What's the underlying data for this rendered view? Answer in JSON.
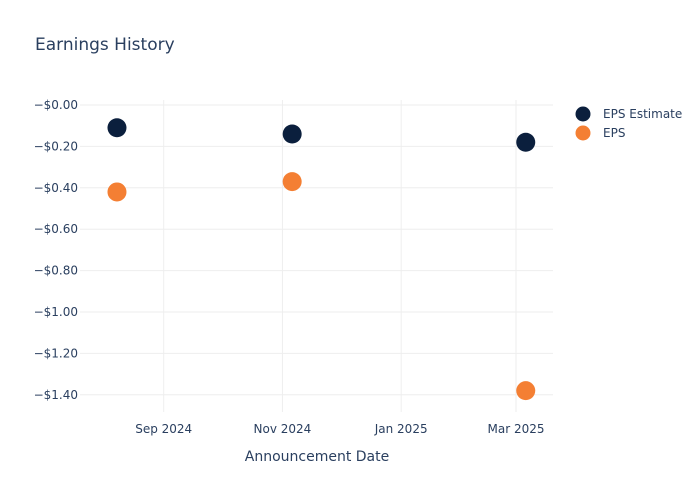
{
  "chart_data": {
    "type": "scatter",
    "title": "Earnings History",
    "xlabel": "Announcement Date",
    "ylabel": "",
    "x_ticks": [
      {
        "label": "Sep 2024",
        "date": "2024-09-01"
      },
      {
        "label": "Nov 2024",
        "date": "2024-11-01"
      },
      {
        "label": "Jan 2025",
        "date": "2025-01-01"
      },
      {
        "label": "Mar 2025",
        "date": "2025-03-01"
      }
    ],
    "y_ticks": [
      {
        "label": "−$0.00",
        "value": 0
      },
      {
        "label": "−$0.20",
        "value": -0.2
      },
      {
        "label": "−$0.40",
        "value": -0.4
      },
      {
        "label": "−$0.60",
        "value": -0.6
      },
      {
        "label": "−$0.80",
        "value": -0.8
      },
      {
        "label": "−$1.00",
        "value": -1.0
      },
      {
        "label": "−$1.20",
        "value": -1.2
      },
      {
        "label": "−$1.40",
        "value": -1.4
      }
    ],
    "xlim": [
      "2024-07-20",
      "2025-03-20"
    ],
    "ylim": [
      -1.5,
      0.05
    ],
    "grid": true,
    "legend_position": "top-right",
    "series": [
      {
        "name": "EPS Estimate",
        "color": "#0b1f3d",
        "points": [
          {
            "x": "2024-08-08",
            "y": -0.11
          },
          {
            "x": "2024-11-06",
            "y": -0.14
          },
          {
            "x": "2025-03-06",
            "y": -0.18
          }
        ]
      },
      {
        "name": "EPS",
        "color": "#f47f33",
        "points": [
          {
            "x": "2024-08-08",
            "y": -0.42
          },
          {
            "x": "2024-11-06",
            "y": -0.37
          },
          {
            "x": "2025-03-06",
            "y": -1.38
          }
        ]
      }
    ]
  }
}
